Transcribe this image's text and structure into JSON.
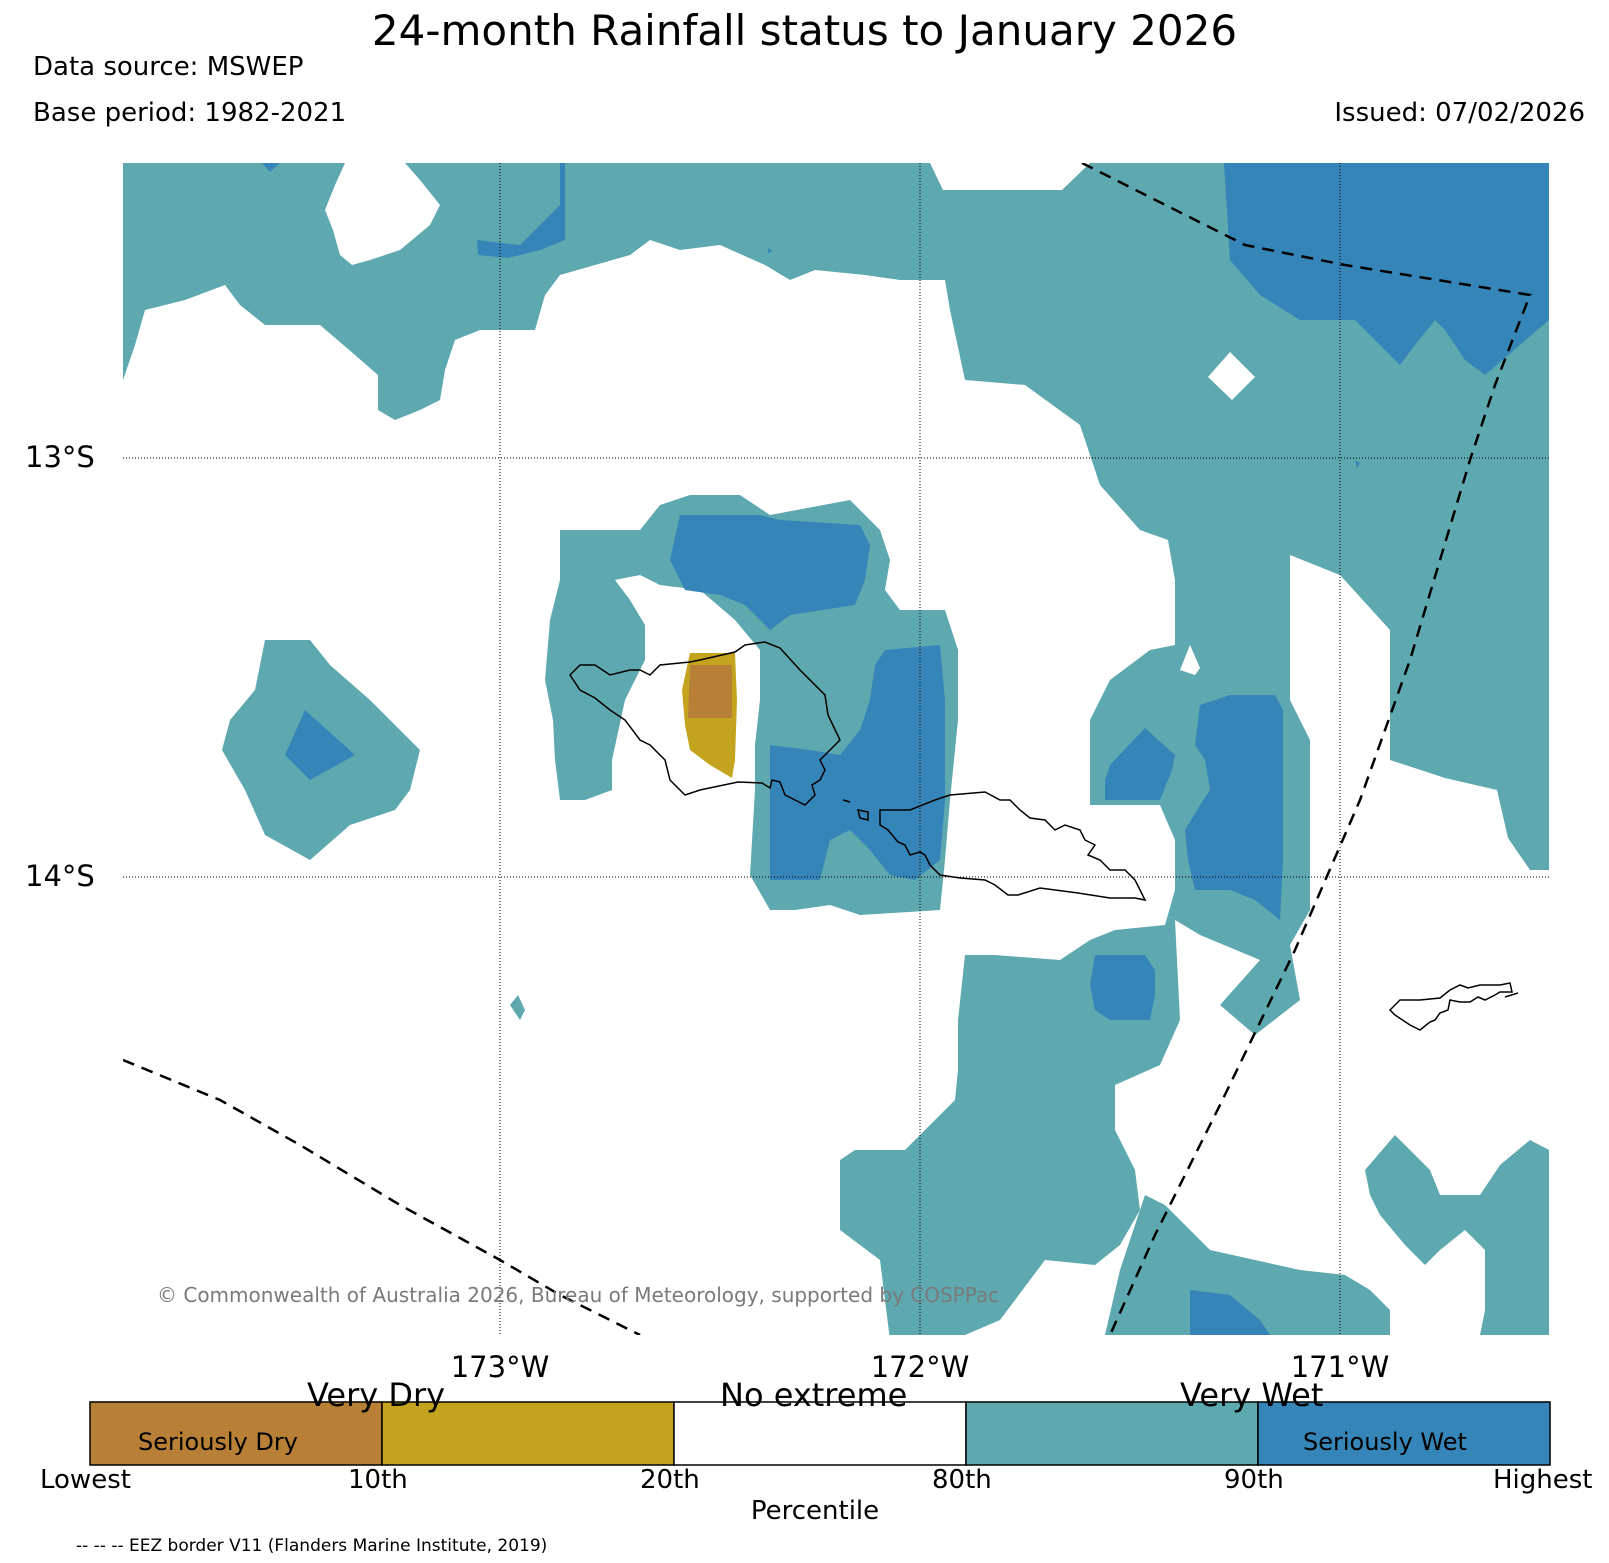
{
  "title": "24-month Rainfall status to January 2026",
  "data_source": "Data source: MSWEP",
  "base_period": "Base period: 1982-2021",
  "issued": "Issued: 07/02/2026",
  "lat_labels": [
    "13°S",
    "14°S"
  ],
  "lon_labels": [
    "173°W",
    "172°W",
    "171°W"
  ],
  "copyright": "© Commonwealth of Australia 2026, Bureau of Meteorology, supported by COSPPac",
  "colorbar": {
    "categories": [
      "Very Dry",
      "No extreme",
      "Very Wet"
    ],
    "inner_labels": [
      "Seriously Dry",
      "Seriously Wet"
    ],
    "ticks": [
      "Lowest",
      "10th",
      "20th",
      "80th",
      "90th",
      "Highest"
    ],
    "xlabel": "Percentile",
    "colors": {
      "seriously_dry": "#b87f37",
      "very_dry": "#c4a41f",
      "no_extreme": "#ffffff",
      "very_wet": "#5ea9af",
      "seriously_wet": "#3585b8"
    }
  },
  "eez_note": "-- -- -- EEZ border V11 (Flanders Marine Institute, 2019)"
}
